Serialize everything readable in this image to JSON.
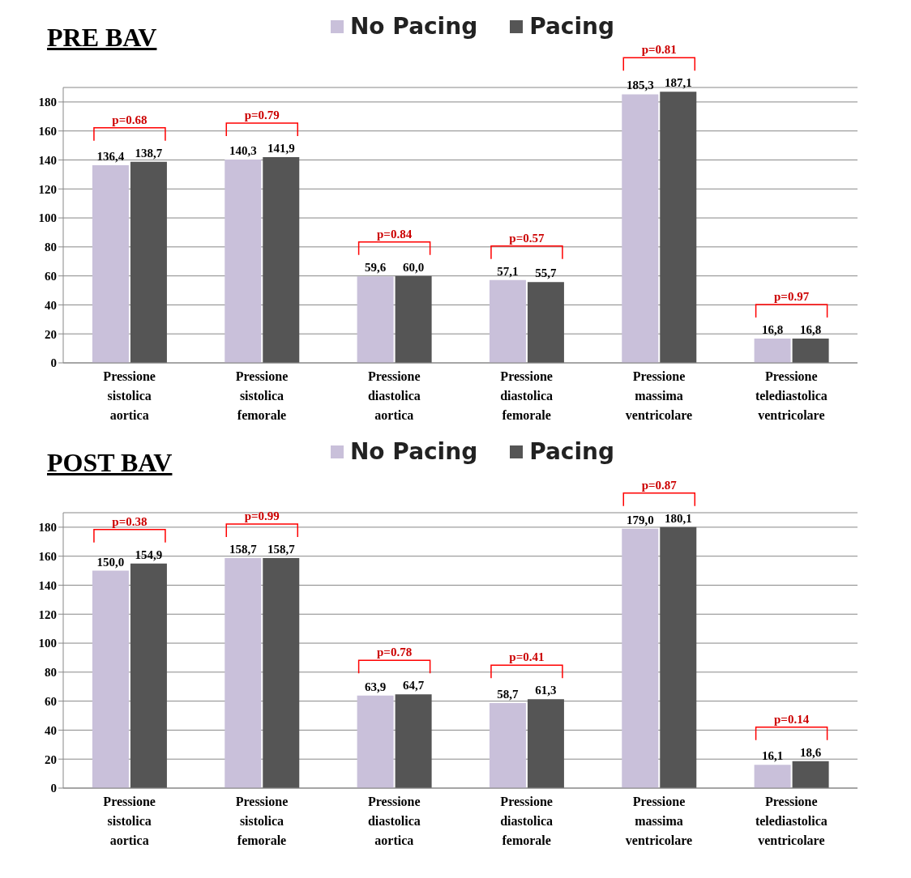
{
  "chart_data": [
    {
      "type": "bar",
      "title": "PRE BAV",
      "categories": [
        "Pressione sistolica aortica",
        "Pressione sistolica femorale",
        "Pressione diastolica aortica",
        "Pressione diastolica femorale",
        "Pressione massima ventricolare",
        "Pressione telediastolica ventricolare"
      ],
      "series": [
        {
          "name": "No Pacing",
          "color": "#c9c0da",
          "values": [
            136.4,
            140.3,
            59.6,
            57.1,
            185.3,
            16.8
          ],
          "value_labels": [
            "136,4",
            "140,3",
            "59,6",
            "57,1",
            "185,3",
            "16,8"
          ]
        },
        {
          "name": "Pacing",
          "color": "#555555",
          "values": [
            138.7,
            141.9,
            60.0,
            55.7,
            187.1,
            16.8
          ],
          "value_labels": [
            "138,7",
            "141,9",
            "60,0",
            "55,7",
            "187,1",
            "16,8"
          ]
        }
      ],
      "ylim": [
        0,
        190
      ],
      "yticks": [
        0,
        20,
        40,
        60,
        80,
        100,
        120,
        140,
        160,
        180
      ],
      "grid": "y",
      "legend": "top",
      "annotations": [
        "p=0.68",
        "p=0.79",
        "p=0.84",
        "p=0.57",
        "p=0.81",
        "p=0.97"
      ]
    },
    {
      "type": "bar",
      "title": "POST BAV",
      "categories": [
        "Pressione sistolica aortica",
        "Pressione sistolica femorale",
        "Pressione diastolica aortica",
        "Pressione diastolica femorale",
        "Pressione massima ventricolare",
        "Pressione telediastolica ventricolare"
      ],
      "series": [
        {
          "name": "No Pacing",
          "color": "#c9c0da",
          "values": [
            150.0,
            158.7,
            63.9,
            58.7,
            179.0,
            16.1
          ],
          "value_labels": [
            "150,0",
            "158,7",
            "63,9",
            "58,7",
            "179,0",
            "16,1"
          ]
        },
        {
          "name": "Pacing",
          "color": "#555555",
          "values": [
            154.9,
            158.7,
            64.7,
            61.3,
            180.1,
            18.6
          ],
          "value_labels": [
            "154,9",
            "158,7",
            "64,7",
            "61,3",
            "180,1",
            "18,6"
          ]
        }
      ],
      "ylim": [
        0,
        190
      ],
      "yticks": [
        0,
        20,
        40,
        60,
        80,
        100,
        120,
        140,
        160,
        180
      ],
      "grid": "y",
      "legend": "top",
      "annotations": [
        "p=0.38",
        "p=0.99",
        "p=0.78",
        "p=0.41",
        "p=0.87",
        "p=0.14"
      ]
    }
  ]
}
